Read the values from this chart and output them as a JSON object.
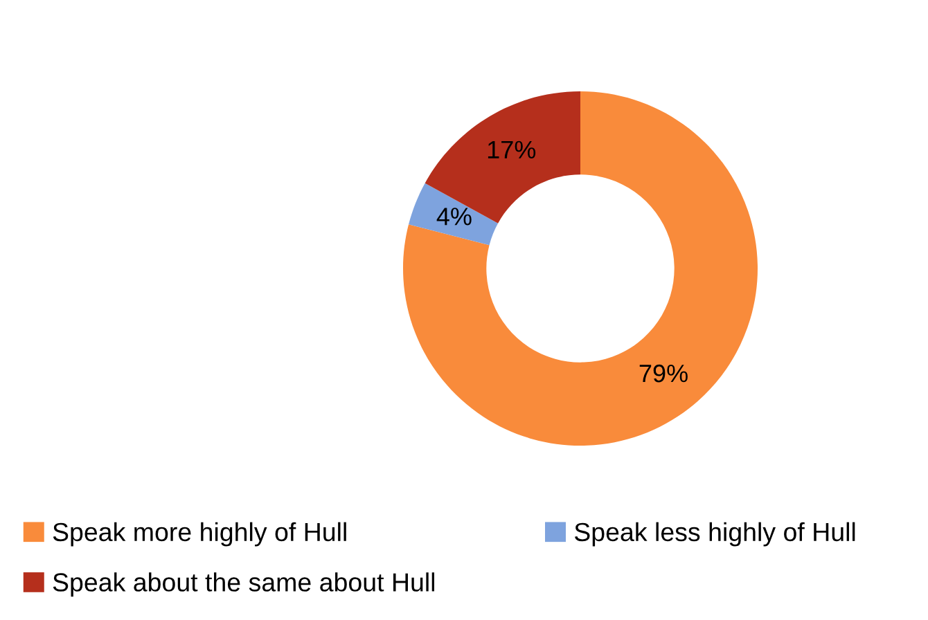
{
  "chart_data": {
    "type": "donut",
    "categories": [
      "Speak more highly of Hull",
      "Speak less highly of Hull",
      "Speak about the same about Hull"
    ],
    "values": [
      79,
      4,
      17
    ],
    "colors": [
      "#f98b3b",
      "#7ea3de",
      "#b52f1c"
    ],
    "value_labels": [
      "79%",
      "4%",
      "17%"
    ],
    "legend": "bottom"
  }
}
